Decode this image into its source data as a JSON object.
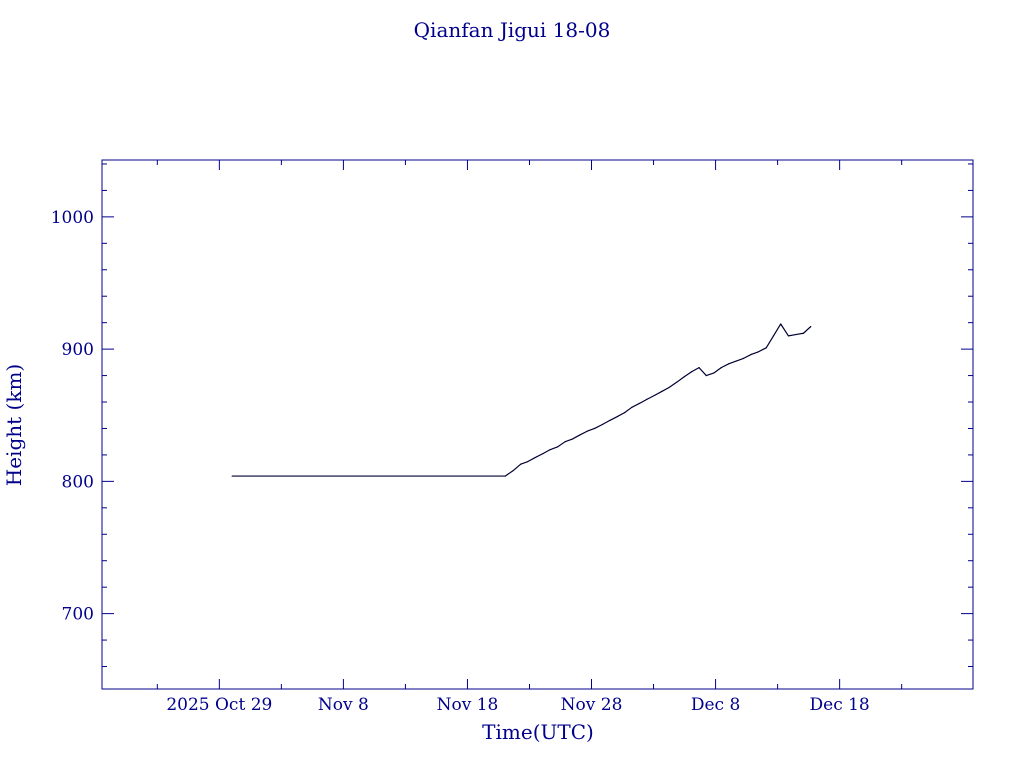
{
  "chart_data": {
    "type": "line",
    "title": "Qianfan Jigui 18-08",
    "xlabel": "Time(UTC)",
    "ylabel": "Height (km)",
    "x_is_date": true,
    "xlim": [
      "2025-10-19T13:00",
      "2025-12-28T18:00"
    ],
    "ylim": [
      643,
      1043
    ],
    "x_ticks": [
      {
        "date": "2025-10-29",
        "label": "2025 Oct 29"
      },
      {
        "date": "2025-11-08",
        "label": "Nov  8"
      },
      {
        "date": "2025-11-18",
        "label": "Nov 18"
      },
      {
        "date": "2025-11-28",
        "label": "Nov 28"
      },
      {
        "date": "2025-12-08",
        "label": "Dec  8"
      },
      {
        "date": "2025-12-18",
        "label": "Dec 18"
      }
    ],
    "x_minor_tick_dates": [
      "2025-10-24",
      "2025-11-03",
      "2025-11-13",
      "2025-11-23",
      "2025-12-03",
      "2025-12-13",
      "2025-12-23"
    ],
    "y_ticks": [
      {
        "value": 700,
        "label": "700"
      },
      {
        "value": 800,
        "label": "800"
      },
      {
        "value": 900,
        "label": "900"
      },
      {
        "value": 1000,
        "label": "1000"
      }
    ],
    "y_minor_step": 20,
    "grid": false,
    "colors": {
      "axes": "#00008b",
      "series": "#000033"
    },
    "series": [
      {
        "x": [
          "2025-10-30T01:00",
          "2025-11-21T01:00",
          "2025-11-21T16:00",
          "2025-11-22T07:00",
          "2025-11-22T21:00",
          "2025-11-23T11:00",
          "2025-11-24T02:00",
          "2025-11-24T16:00",
          "2025-11-25T06:00",
          "2025-11-25T21:00",
          "2025-11-26T11:00",
          "2025-11-27T01:00",
          "2025-11-27T16:00",
          "2025-11-28T06:00",
          "2025-11-28T21:00",
          "2025-11-29T11:00",
          "2025-11-30T02:00",
          "2025-11-30T16:00",
          "2025-12-01T06:00",
          "2025-12-01T21:00",
          "2025-12-02T11:00",
          "2025-12-03T02:00",
          "2025-12-03T16:00",
          "2025-12-04T06:00",
          "2025-12-04T21:00",
          "2025-12-05T11:00",
          "2025-12-06T02:00",
          "2025-12-06T16:00",
          "2025-12-07T06:00",
          "2025-12-07T21:00",
          "2025-12-08T11:00",
          "2025-12-09T02:00",
          "2025-12-09T16:00",
          "2025-12-10T06:00",
          "2025-12-10T21:00",
          "2025-12-11T11:00",
          "2025-12-12T02:00",
          "2025-12-12T16:00",
          "2025-12-13T06:00",
          "2025-12-13T21:00",
          "2025-12-14T11:00",
          "2025-12-15T02:00",
          "2025-12-15T16:00"
        ],
        "y": [
          804,
          804,
          808,
          813,
          815,
          818,
          821,
          824,
          826,
          830,
          832,
          835,
          838,
          840,
          843,
          846,
          849,
          852,
          856,
          859,
          862,
          865,
          868,
          871,
          875,
          879,
          883,
          886,
          880,
          882,
          886,
          889,
          891,
          893,
          896,
          898,
          901,
          910,
          919,
          910,
          911,
          912,
          917
        ]
      }
    ]
  }
}
